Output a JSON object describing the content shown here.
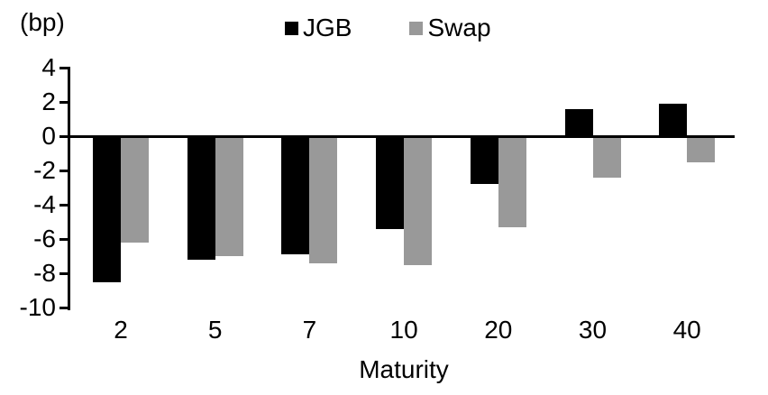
{
  "chart_data": {
    "type": "bar",
    "title": "",
    "unit_label": "(bp)",
    "xlabel": "Maturity",
    "ylabel": "",
    "categories": [
      "2",
      "5",
      "7",
      "10",
      "20",
      "30",
      "40"
    ],
    "series": [
      {
        "name": "JGB",
        "color": "#000000",
        "values": [
          -8.5,
          -7.2,
          -6.9,
          -5.4,
          -2.8,
          1.6,
          1.9
        ]
      },
      {
        "name": "Swap",
        "color": "#999999",
        "values": [
          -6.2,
          -7.0,
          -7.4,
          -7.5,
          -5.3,
          -2.4,
          -1.5
        ]
      }
    ],
    "y_ticks": [
      4,
      2,
      0,
      -2,
      -4,
      -6,
      -8,
      -10
    ],
    "ylim": [
      -10,
      4
    ],
    "grid": false,
    "legend_position": "top",
    "axis_color": "#000000",
    "background_color": "#ffffff"
  }
}
